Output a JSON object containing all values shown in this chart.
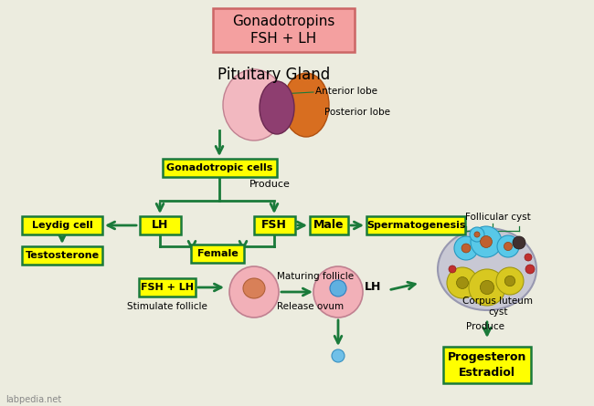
{
  "bg_color": "#ececdf",
  "arrow_color": "#1a7a3a",
  "yellow": "#ffff00",
  "green_border": "#1a7a3a",
  "title_fill": "#f4a0a0",
  "title_border": "#cc6666",
  "title_text": "Gonadotropins\nFSH + LH",
  "pituitary_text": "Pituitary Gland",
  "watermark": "labpedia.net",
  "fig_w": 6.5,
  "fig_h": 4.45,
  "dpi": 100
}
